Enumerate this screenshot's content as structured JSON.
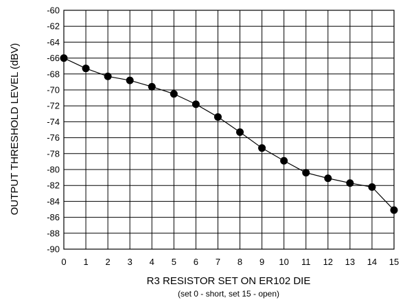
{
  "chart_data": {
    "type": "line",
    "xlabel": "R3 RESISTOR SET ON ER102 DIE",
    "xsublabel": "(set 0 - short, set 15 - open)",
    "ylabel": "OUTPUT THRESHOLD  LEVEL (dBV)",
    "xlim": [
      0,
      15
    ],
    "ylim": [
      -90,
      -60
    ],
    "xticks": [
      0,
      1,
      2,
      3,
      4,
      5,
      6,
      7,
      8,
      9,
      10,
      11,
      12,
      13,
      14,
      15
    ],
    "yticks": [
      -60,
      -62,
      -64,
      -66,
      -68,
      -70,
      -72,
      -74,
      -76,
      -78,
      -80,
      -82,
      -84,
      -86,
      -88,
      -90
    ],
    "grid": true,
    "series": [
      {
        "x": [
          0,
          1,
          2,
          3,
          4,
          5,
          6,
          7,
          8,
          9,
          10,
          11,
          12,
          13,
          14,
          15
        ],
        "y": [
          -66.0,
          -67.3,
          -68.3,
          -68.8,
          -69.6,
          -70.5,
          -71.8,
          -73.4,
          -75.3,
          -77.3,
          -78.9,
          -80.4,
          -81.1,
          -81.7,
          -82.2,
          -85.1
        ]
      }
    ]
  }
}
